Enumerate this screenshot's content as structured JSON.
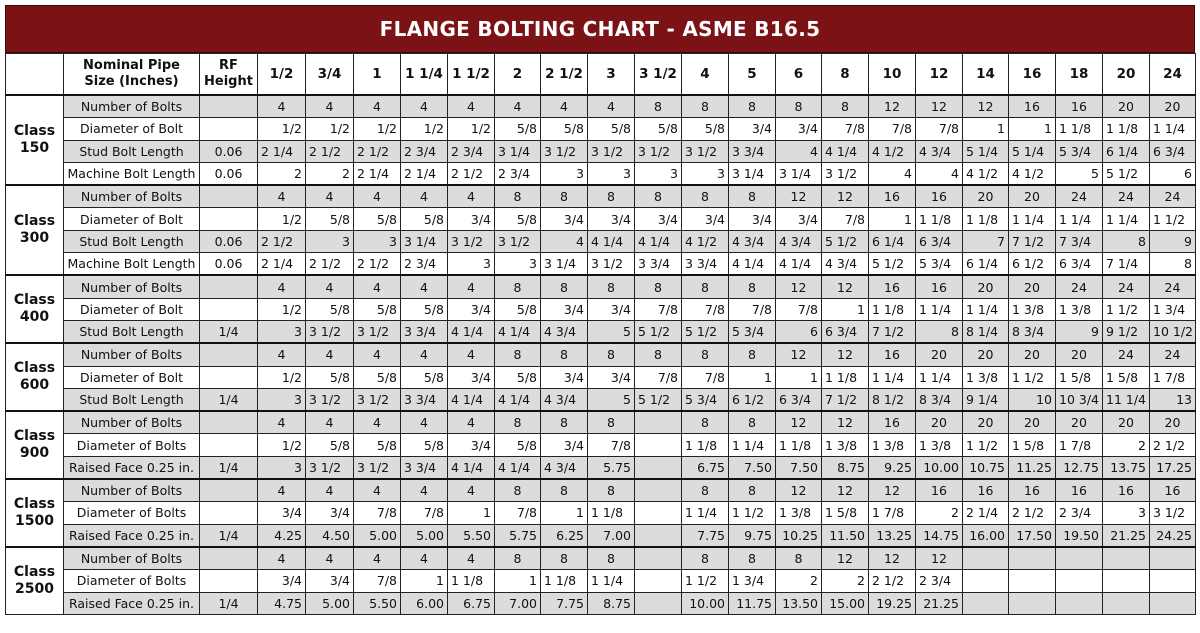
{
  "title": "FLANGE BOLTING CHART - ASME B16.5",
  "headers": {
    "nominal": "Nominal Pipe Size (Inches)",
    "rf": "RF Height",
    "sizes": [
      "1/2",
      "3/4",
      "1",
      "1 1/4",
      "1 1/2",
      "2",
      "2 1/2",
      "3",
      "3 1/2",
      "4",
      "5",
      "6",
      "8",
      "10",
      "12",
      "14",
      "16",
      "18",
      "20",
      "24"
    ]
  },
  "groups": [
    {
      "class_label": "Class 150",
      "rows": [
        {
          "label": "Number of Bolts",
          "rf": "",
          "values": [
            "4",
            "4",
            "4",
            "4",
            "4",
            "4",
            "4",
            "4",
            "8",
            "8",
            "8",
            "8",
            "8",
            "12",
            "12",
            "12",
            "16",
            "16",
            "20",
            "20"
          ]
        },
        {
          "label": "Diameter of Bolt",
          "rf": "",
          "values": [
            "1/2",
            "1/2",
            "1/2",
            "1/2",
            "1/2",
            "5/8",
            "5/8",
            "5/8",
            "5/8",
            "5/8",
            "3/4",
            "3/4",
            "7/8",
            "7/8",
            "7/8",
            "1",
            "1",
            "1 1/8",
            "1 1/8",
            "1 1/4"
          ]
        },
        {
          "label": "Stud Bolt Length",
          "rf": "0.06",
          "values": [
            "2 1/4",
            "2 1/2",
            "2 1/2",
            "2 3/4",
            "2 3/4",
            "3 1/4",
            "3 1/2",
            "3 1/2",
            "3 1/2",
            "3 1/2",
            "3 3/4",
            "4",
            "4 1/4",
            "4 1/2",
            "4 3/4",
            "5 1/4",
            "5 1/4",
            "5 3/4",
            "6 1/4",
            "6 3/4"
          ]
        },
        {
          "label": "Machine Bolt Length",
          "rf": "0.06",
          "values": [
            "2",
            "2",
            "2 1/4",
            "2 1/4",
            "2 1/2",
            "2 3/4",
            "3",
            "3",
            "3",
            "3",
            "3 1/4",
            "3 1/4",
            "3 1/2",
            "4",
            "4",
            "4 1/2",
            "4 1/2",
            "5",
            "5 1/2",
            "6"
          ]
        }
      ]
    },
    {
      "class_label": "Class 300",
      "rows": [
        {
          "label": "Number of Bolts",
          "rf": "",
          "values": [
            "4",
            "4",
            "4",
            "4",
            "4",
            "8",
            "8",
            "8",
            "8",
            "8",
            "8",
            "12",
            "12",
            "16",
            "16",
            "20",
            "20",
            "24",
            "24",
            "24"
          ]
        },
        {
          "label": "Diameter of Bolt",
          "rf": "",
          "values": [
            "1/2",
            "5/8",
            "5/8",
            "5/8",
            "3/4",
            "5/8",
            "3/4",
            "3/4",
            "3/4",
            "3/4",
            "3/4",
            "3/4",
            "7/8",
            "1",
            "1 1/8",
            "1 1/8",
            "1 1/4",
            "1 1/4",
            "1 1/4",
            "1 1/2"
          ]
        },
        {
          "label": "Stud Bolt Length",
          "rf": "0.06",
          "values": [
            "2 1/2",
            "3",
            "3",
            "3 1/4",
            "3 1/2",
            "3 1/2",
            "4",
            "4 1/4",
            "4 1/4",
            "4 1/2",
            "4 3/4",
            "4 3/4",
            "5 1/2",
            "6 1/4",
            "6 3/4",
            "7",
            "7 1/2",
            "7 3/4",
            "8",
            "9"
          ]
        },
        {
          "label": "Machine Bolt Length",
          "rf": "0.06",
          "values": [
            "2 1/4",
            "2 1/2",
            "2 1/2",
            "2 3/4",
            "3",
            "3",
            "3 1/4",
            "3 1/2",
            "3 3/4",
            "3 3/4",
            "4 1/4",
            "4 1/4",
            "4 3/4",
            "5 1/2",
            "5 3/4",
            "6 1/4",
            "6 1/2",
            "6 3/4",
            "7 1/4",
            "8"
          ]
        }
      ]
    },
    {
      "class_label": "Class 400",
      "rows": [
        {
          "label": "Number of Bolts",
          "rf": "",
          "values": [
            "4",
            "4",
            "4",
            "4",
            "4",
            "8",
            "8",
            "8",
            "8",
            "8",
            "8",
            "12",
            "12",
            "16",
            "16",
            "20",
            "20",
            "24",
            "24",
            "24"
          ]
        },
        {
          "label": "Diameter of Bolt",
          "rf": "",
          "values": [
            "1/2",
            "5/8",
            "5/8",
            "5/8",
            "3/4",
            "5/8",
            "3/4",
            "3/4",
            "7/8",
            "7/8",
            "7/8",
            "7/8",
            "1",
            "1 1/8",
            "1 1/4",
            "1 1/4",
            "1 3/8",
            "1 3/8",
            "1 1/2",
            "1 3/4"
          ]
        },
        {
          "label": "Stud Bolt Length",
          "rf": "1/4",
          "values": [
            "3",
            "3 1/2",
            "3 1/2",
            "3 3/4",
            "4 1/4",
            "4 1/4",
            "4 3/4",
            "5",
            "5 1/2",
            "5 1/2",
            "5 3/4",
            "6",
            "6 3/4",
            "7 1/2",
            "8",
            "8 1/4",
            "8 3/4",
            "9",
            "9 1/2",
            "10 1/2"
          ]
        }
      ]
    },
    {
      "class_label": "Class 600",
      "rows": [
        {
          "label": "Number of Bolts",
          "rf": "",
          "values": [
            "4",
            "4",
            "4",
            "4",
            "4",
            "8",
            "8",
            "8",
            "8",
            "8",
            "8",
            "12",
            "12",
            "16",
            "20",
            "20",
            "20",
            "20",
            "24",
            "24"
          ]
        },
        {
          "label": "Diameter of Bolt",
          "rf": "",
          "values": [
            "1/2",
            "5/8",
            "5/8",
            "5/8",
            "3/4",
            "5/8",
            "3/4",
            "3/4",
            "7/8",
            "7/8",
            "1",
            "1",
            "1 1/8",
            "1 1/4",
            "1 1/4",
            "1 3/8",
            "1 1/2",
            "1 5/8",
            "1 5/8",
            "1 7/8"
          ]
        },
        {
          "label": "Stud Bolt Length",
          "rf": "1/4",
          "values": [
            "3",
            "3 1/2",
            "3 1/2",
            "3 3/4",
            "4 1/4",
            "4 1/4",
            "4 3/4",
            "5",
            "5 1/2",
            "5 3/4",
            "6 1/2",
            "6 3/4",
            "7 1/2",
            "8 1/2",
            "8 3/4",
            "9 1/4",
            "10",
            "10 3/4",
            "11 1/4",
            "13"
          ]
        }
      ]
    },
    {
      "class_label": "Class 900",
      "rows": [
        {
          "label": "Number of Bolts",
          "rf": "",
          "values": [
            "4",
            "4",
            "4",
            "4",
            "4",
            "8",
            "8",
            "8",
            "",
            "8",
            "8",
            "12",
            "12",
            "16",
            "20",
            "20",
            "20",
            "20",
            "20",
            "20"
          ]
        },
        {
          "label": "Diameter of Bolts",
          "rf": "",
          "values": [
            "1/2",
            "5/8",
            "5/8",
            "5/8",
            "3/4",
            "5/8",
            "3/4",
            "7/8",
            "",
            "1 1/8",
            "1 1/4",
            "1 1/8",
            "1 3/8",
            "1 3/8",
            "1 3/8",
            "1 1/2",
            "1 5/8",
            "1 7/8",
            "2",
            "2 1/2"
          ]
        },
        {
          "label": "Raised Face 0.25 in.",
          "rf": "1/4",
          "values": [
            "3",
            "3 1/2",
            "3 1/2",
            "3 3/4",
            "4 1/4",
            "4 1/4",
            "4 3/4",
            "5.75",
            "",
            "6.75",
            "7.50",
            "7.50",
            "8.75",
            "9.25",
            "10.00",
            "10.75",
            "11.25",
            "12.75",
            "13.75",
            "17.25"
          ]
        }
      ]
    },
    {
      "class_label": "Class 1500",
      "rows": [
        {
          "label": "Number of Bolts",
          "rf": "",
          "values": [
            "4",
            "4",
            "4",
            "4",
            "4",
            "8",
            "8",
            "8",
            "",
            "8",
            "8",
            "12",
            "12",
            "12",
            "16",
            "16",
            "16",
            "16",
            "16",
            "16"
          ]
        },
        {
          "label": "Diameter of Bolts",
          "rf": "",
          "values": [
            "3/4",
            "3/4",
            "7/8",
            "7/8",
            "1",
            "7/8",
            "1",
            "1 1/8",
            "",
            "1 1/4",
            "1 1/2",
            "1 3/8",
            "1 5/8",
            "1 7/8",
            "2",
            "2 1/4",
            "2 1/2",
            "2 3/4",
            "3",
            "3 1/2"
          ]
        },
        {
          "label": "Raised Face 0.25 in.",
          "rf": "1/4",
          "values": [
            "4.25",
            "4.50",
            "5.00",
            "5.00",
            "5.50",
            "5.75",
            "6.25",
            "7.00",
            "",
            "7.75",
            "9.75",
            "10.25",
            "11.50",
            "13.25",
            "14.75",
            "16.00",
            "17.50",
            "19.50",
            "21.25",
            "24.25"
          ]
        }
      ]
    },
    {
      "class_label": "Class 2500",
      "rows": [
        {
          "label": "Number of Bolts",
          "rf": "",
          "values": [
            "4",
            "4",
            "4",
            "4",
            "4",
            "8",
            "8",
            "8",
            "",
            "8",
            "8",
            "8",
            "12",
            "12",
            "12",
            "",
            "",
            "",
            "",
            ""
          ]
        },
        {
          "label": "Diameter of Bolts",
          "rf": "",
          "values": [
            "3/4",
            "3/4",
            "7/8",
            "1",
            "1 1/8",
            "1",
            "1 1/8",
            "1 1/4",
            "",
            "1 1/2",
            "1 3/4",
            "2",
            "2",
            "2 1/2",
            "2 3/4",
            "",
            "",
            "",
            "",
            ""
          ]
        },
        {
          "label": "Raised Face 0.25 in.",
          "rf": "1/4",
          "values": [
            "4.75",
            "5.00",
            "5.50",
            "6.00",
            "6.75",
            "7.00",
            "7.75",
            "8.75",
            "",
            "10.00",
            "11.75",
            "13.50",
            "15.00",
            "19.25",
            "21.25",
            "",
            "",
            "",
            "",
            ""
          ]
        }
      ]
    }
  ]
}
